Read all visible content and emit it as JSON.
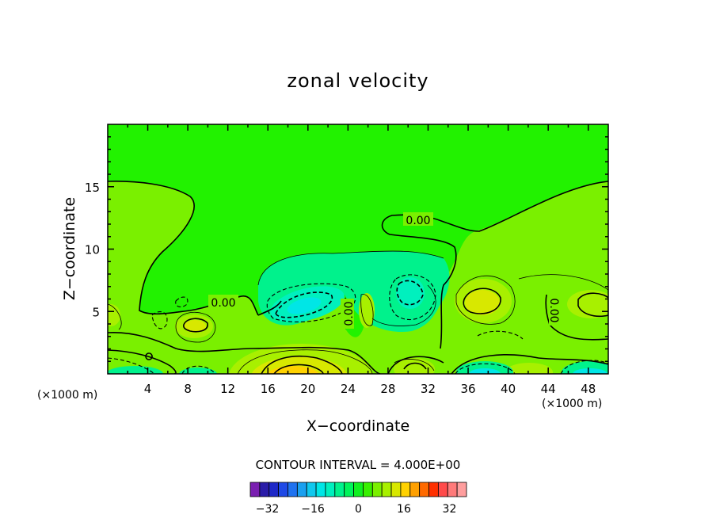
{
  "chart_data": {
    "type": "contour",
    "title": "zonal velocity",
    "xlabel": "X−coordinate",
    "ylabel": "Z−coordinate",
    "x_unit_label": "(×1000 m)",
    "xlim": [
      0,
      50
    ],
    "ylim": [
      0,
      20
    ],
    "x_ticks": [
      4,
      8,
      12,
      16,
      20,
      24,
      28,
      32,
      36,
      40,
      44,
      48
    ],
    "y_ticks": [
      5,
      10,
      15
    ],
    "contour_interval_text": "CONTOUR INTERVAL = 4.000E+00",
    "contour_labels": [
      "0.00",
      "0.00",
      "0.00",
      "0.00"
    ],
    "colorbar": {
      "ticks": [
        "−32",
        "−16",
        "0",
        "16",
        "32"
      ],
      "tick_values": [
        -32,
        -16,
        0,
        16,
        32
      ],
      "range": [
        -38,
        38
      ],
      "colors": [
        "#7a1fb0",
        "#2a1ca8",
        "#1e28c8",
        "#1f49e6",
        "#1f72f0",
        "#1aa0f0",
        "#10c8ee",
        "#00e6e6",
        "#00f0be",
        "#00f28c",
        "#00f45a",
        "#10f020",
        "#38f000",
        "#7af000",
        "#a8f000",
        "#d8e800",
        "#ffd200",
        "#ffa000",
        "#ff6a00",
        "#ff3000",
        "#ff4a4a",
        "#ff7a7a",
        "#ff9e9e"
      ]
    },
    "fill_colors": {
      "zero": "#22f200",
      "pos1": "#7af000",
      "pos2": "#a8f000",
      "pos3": "#d8e800",
      "pos4": "#ffd200",
      "neg1": "#00f28c",
      "neg2": "#00f0be",
      "neg3": "#00e6e6"
    }
  }
}
